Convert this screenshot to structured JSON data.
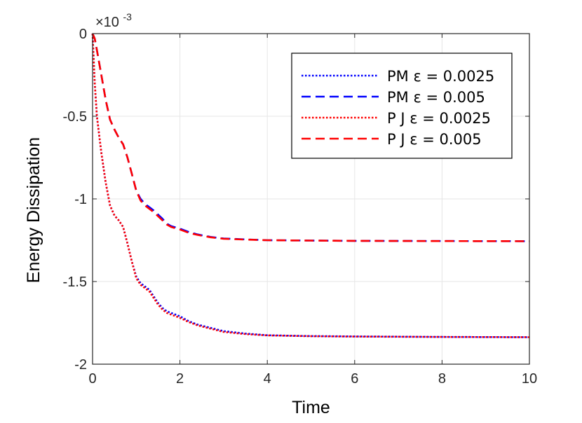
{
  "chart_data": {
    "type": "line",
    "title": "",
    "xlabel": "Time",
    "ylabel": "Energy Dissipation",
    "xlim": [
      0,
      10
    ],
    "ylim": [
      -2,
      0
    ],
    "y_exponent_label": "×10",
    "y_exponent_power": "-3",
    "xticks": [
      "0",
      "2",
      "4",
      "6",
      "8",
      "10"
    ],
    "yticks": [
      "0",
      "-0.5",
      "-1",
      "-1.5",
      "-2"
    ],
    "xtick_values": [
      0,
      2,
      4,
      6,
      8,
      10
    ],
    "ytick_values": [
      0,
      -0.5,
      -1,
      -1.5,
      -2
    ],
    "grid": true,
    "legend_position": "top-right",
    "series": [
      {
        "name": "PM  ε = 0.0025",
        "color": "#0000ff",
        "dash": "dotted",
        "x": [
          0,
          0.05,
          0.1,
          0.2,
          0.3,
          0.4,
          0.5,
          0.6,
          0.7,
          0.8,
          0.9,
          1.0,
          1.1,
          1.2,
          1.3,
          1.4,
          1.5,
          1.6,
          1.7,
          1.8,
          2.0,
          2.2,
          2.4,
          2.7,
          3.0,
          3.5,
          4.0,
          5.0,
          6.0,
          8.0,
          10.0
        ],
        "y": [
          0,
          -0.3,
          -0.5,
          -0.72,
          -0.9,
          -1.04,
          -1.1,
          -1.13,
          -1.17,
          -1.27,
          -1.38,
          -1.47,
          -1.51,
          -1.53,
          -1.55,
          -1.59,
          -1.63,
          -1.66,
          -1.68,
          -1.69,
          -1.71,
          -1.74,
          -1.76,
          -1.78,
          -1.8,
          -1.815,
          -1.825,
          -1.83,
          -1.832,
          -1.835,
          -1.837
        ]
      },
      {
        "name": "PM  ε = 0.005",
        "color": "#0000ff",
        "dash": "dashed",
        "x": [
          0,
          0.05,
          0.1,
          0.2,
          0.3,
          0.4,
          0.5,
          0.6,
          0.7,
          0.8,
          0.9,
          1.0,
          1.1,
          1.2,
          1.4,
          1.6,
          1.7,
          1.8,
          2.0,
          2.2,
          2.4,
          2.7,
          3.0,
          3.5,
          4.0,
          5.0,
          6.0,
          8.0,
          10.0
        ],
        "y": [
          0,
          -0.03,
          -0.1,
          -0.25,
          -0.4,
          -0.52,
          -0.58,
          -0.63,
          -0.67,
          -0.75,
          -0.85,
          -0.95,
          -1.0,
          -1.03,
          -1.07,
          -1.12,
          -1.15,
          -1.165,
          -1.18,
          -1.2,
          -1.215,
          -1.23,
          -1.24,
          -1.245,
          -1.25,
          -1.252,
          -1.254,
          -1.255,
          -1.256
        ]
      },
      {
        "name": "P J  ε = 0.0025",
        "color": "#ff0000",
        "dash": "dotted",
        "x": [
          0,
          0.05,
          0.1,
          0.2,
          0.3,
          0.4,
          0.5,
          0.6,
          0.7,
          0.8,
          0.9,
          1.0,
          1.1,
          1.2,
          1.3,
          1.4,
          1.5,
          1.6,
          1.7,
          1.8,
          2.0,
          2.2,
          2.4,
          2.7,
          3.0,
          3.5,
          4.0,
          5.0,
          6.0,
          8.0,
          10.0
        ],
        "y": [
          0,
          -0.3,
          -0.5,
          -0.72,
          -0.9,
          -1.04,
          -1.1,
          -1.13,
          -1.17,
          -1.27,
          -1.38,
          -1.48,
          -1.52,
          -1.54,
          -1.56,
          -1.6,
          -1.64,
          -1.67,
          -1.69,
          -1.7,
          -1.72,
          -1.745,
          -1.765,
          -1.785,
          -1.805,
          -1.818,
          -1.826,
          -1.831,
          -1.833,
          -1.835,
          -1.837
        ]
      },
      {
        "name": "P J  ε = 0.005",
        "color": "#ff0000",
        "dash": "dashed",
        "x": [
          0,
          0.05,
          0.1,
          0.2,
          0.3,
          0.4,
          0.5,
          0.6,
          0.7,
          0.8,
          0.9,
          1.0,
          1.1,
          1.2,
          1.4,
          1.6,
          1.7,
          1.8,
          2.0,
          2.2,
          2.4,
          2.7,
          3.0,
          3.5,
          4.0,
          5.0,
          6.0,
          8.0,
          10.0
        ],
        "y": [
          0,
          -0.03,
          -0.1,
          -0.25,
          -0.4,
          -0.52,
          -0.58,
          -0.63,
          -0.67,
          -0.75,
          -0.85,
          -0.95,
          -1.01,
          -1.04,
          -1.08,
          -1.13,
          -1.155,
          -1.17,
          -1.185,
          -1.205,
          -1.218,
          -1.232,
          -1.241,
          -1.246,
          -1.25,
          -1.252,
          -1.254,
          -1.255,
          -1.256
        ]
      }
    ]
  }
}
